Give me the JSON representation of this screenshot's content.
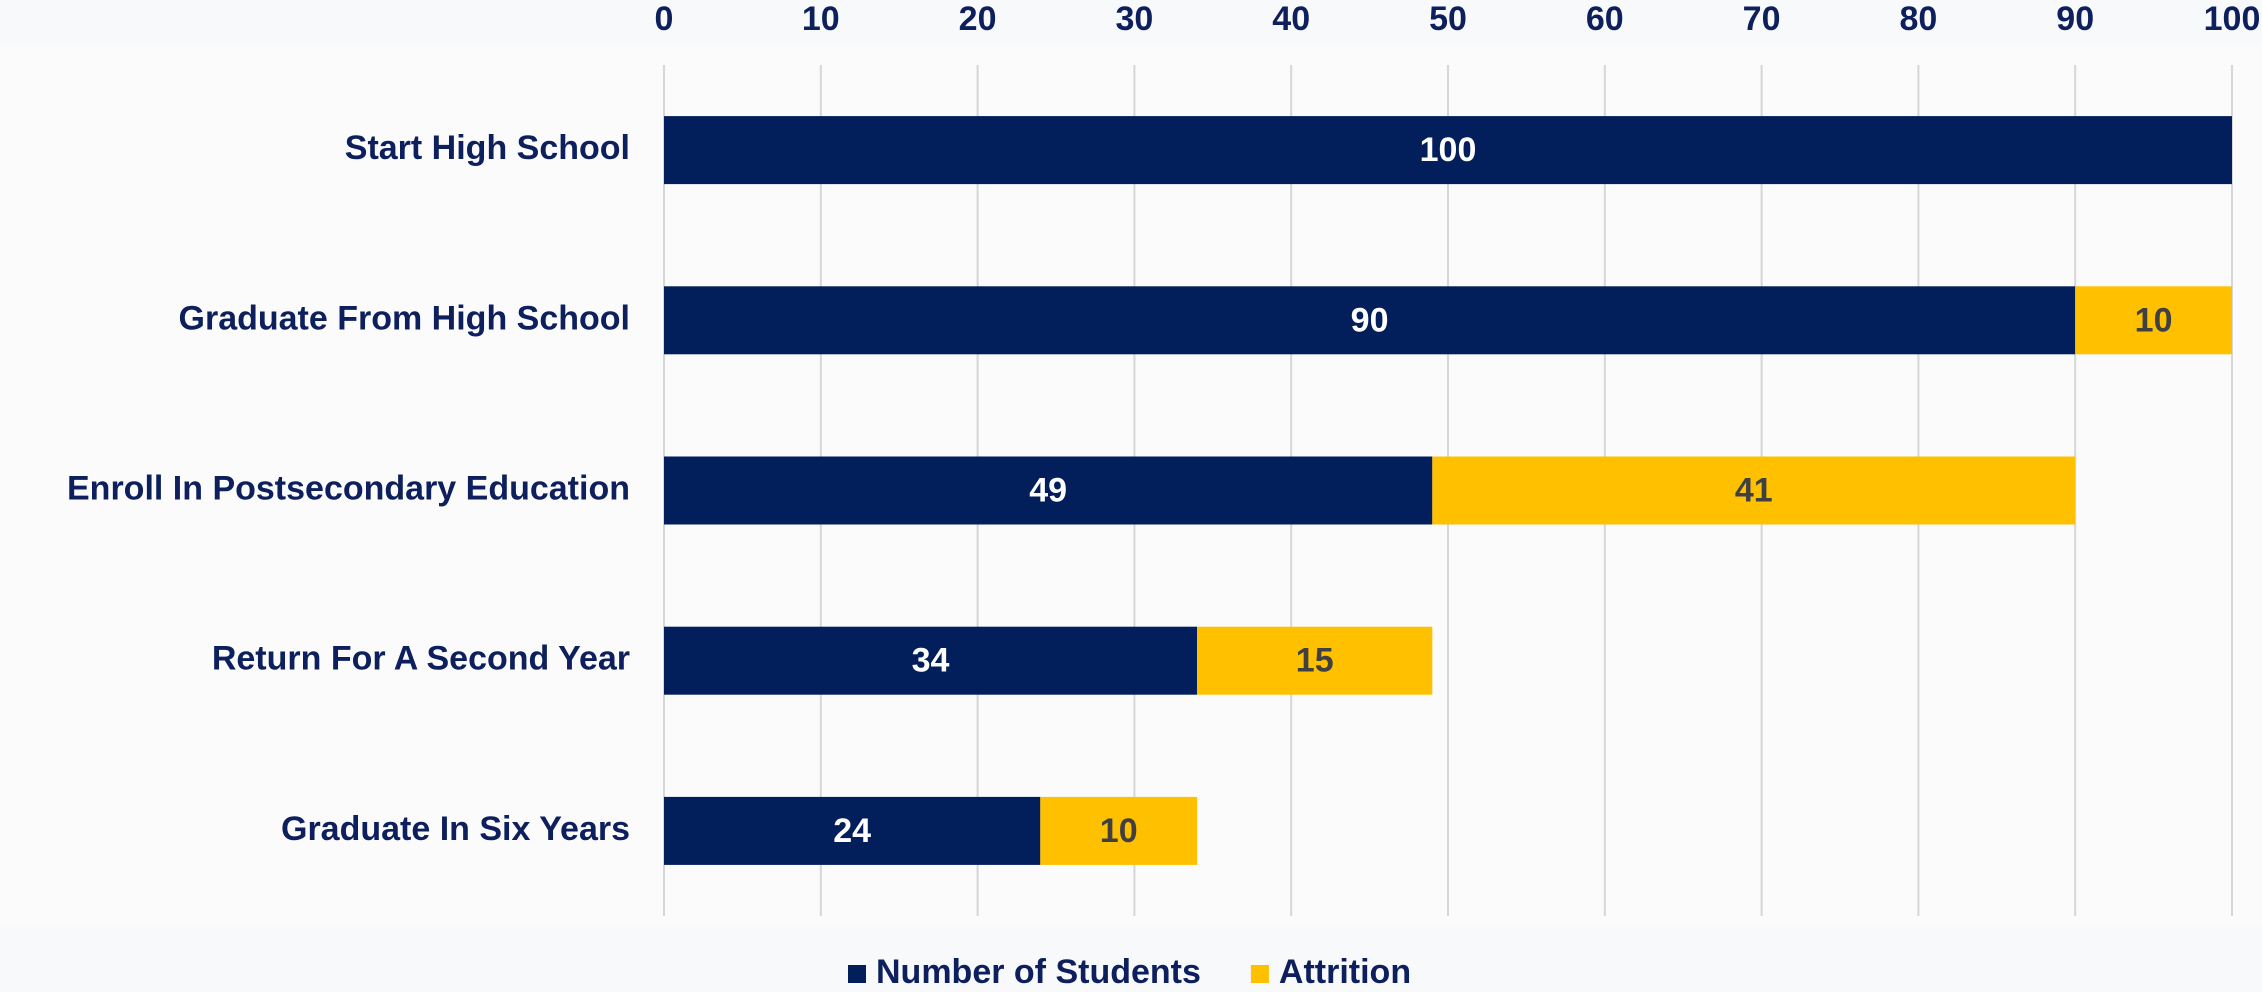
{
  "chart_data": {
    "type": "stacked-bar-horizontal",
    "categories": [
      "Start High School",
      "Graduate From High School",
      "Enroll In Postsecondary Education",
      "Return For A Second Year",
      "Graduate In Six Years"
    ],
    "series": [
      {
        "name": "Number of Students",
        "color": "#021e5b",
        "label_color": "#ffffff",
        "values": [
          100,
          90,
          49,
          34,
          24
        ]
      },
      {
        "name": "Attrition",
        "color": "#ffc000",
        "label_color": "#404040",
        "values": [
          null,
          10,
          41,
          15,
          10
        ]
      }
    ],
    "xlim": [
      0,
      100
    ],
    "xticks": [
      0,
      10,
      20,
      30,
      40,
      50,
      60,
      70,
      80,
      90,
      100
    ],
    "grid": true,
    "legend": "bottom"
  }
}
